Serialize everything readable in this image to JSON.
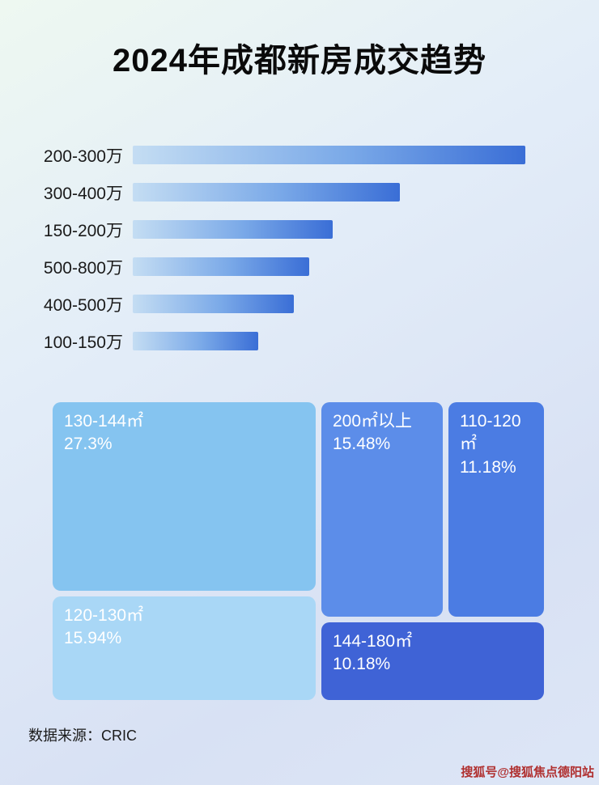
{
  "page": {
    "title": "2024年成都新房成交趋势",
    "source": "数据来源：CRIC",
    "watermark": "搜狐号@搜狐焦点德阳站"
  },
  "chart_data": [
    {
      "type": "bar",
      "orientation": "horizontal",
      "title": "2024年成都新房成交趋势",
      "categories": [
        "200-300万",
        "300-400万",
        "150-200万",
        "500-800万",
        "400-500万",
        "100-150万"
      ],
      "values": [
        100,
        68,
        51,
        45,
        41,
        32
      ],
      "value_note": "relative bar lengths; no numeric axis shown in image",
      "bar_gradient": [
        "#c4ddf3",
        "#3a6ed6"
      ],
      "legend": "none",
      "grid": false
    },
    {
      "type": "treemap",
      "title": "",
      "items": [
        {
          "label": "130-144㎡",
          "value_pct": 27.3,
          "value_label": "27.3%",
          "color": "#85c4f0"
        },
        {
          "label": "200㎡以上",
          "value_pct": 15.48,
          "value_label": "15.48%",
          "color": "#5c8de9"
        },
        {
          "label": "110-120㎡",
          "value_pct": 11.18,
          "value_label": "11.18%",
          "color": "#4b7ce3"
        },
        {
          "label": "120-130㎡",
          "value_pct": 15.94,
          "value_label": "15.94%",
          "color": "#a9d7f6"
        },
        {
          "label": "144-180㎡",
          "value_pct": 10.18,
          "value_label": "10.18%",
          "color": "#3f63d6"
        }
      ]
    }
  ]
}
